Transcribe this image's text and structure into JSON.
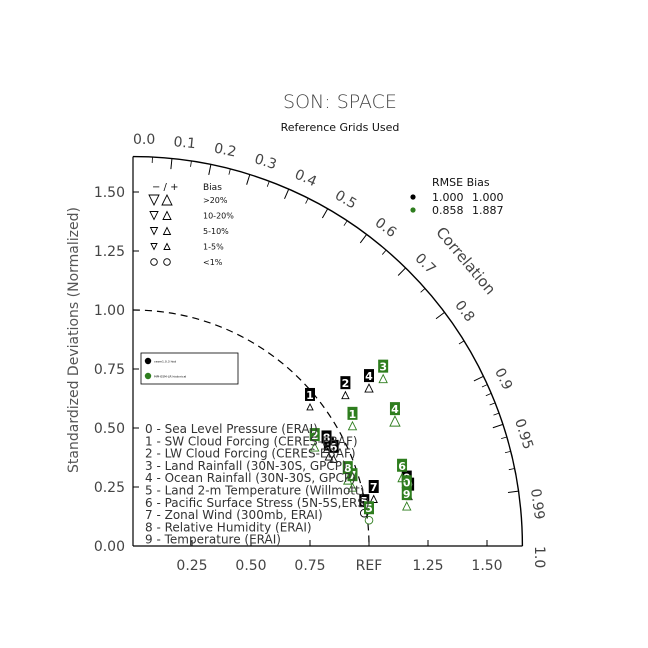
{
  "chart_data": {
    "type": "taylor-diagram",
    "title": "SON: SPACE",
    "subtitle": "Reference Grids Used",
    "ylabel": "Standardized Deviations (Normalized)",
    "correlation_label": "Correlation",
    "std_ticks": [
      "0.00",
      "0.25",
      "0.50",
      "0.75",
      "1.00",
      "1.25",
      "1.50"
    ],
    "x_tick_labels": [
      "0.25",
      "0.50",
      "0.75",
      "REF",
      "1.25",
      "1.50"
    ],
    "corr_ticks": [
      "0.0",
      "0.1",
      "0.2",
      "0.3",
      "0.4",
      "0.5",
      "0.6",
      "0.7",
      "0.8",
      "0.9",
      "0.95",
      "0.99",
      "1.0"
    ],
    "std_max": 1.65,
    "ref_std": 1.0,
    "bias_legend": {
      "header_sign": "− / +",
      "header_label": "Bias",
      "rows": [
        ">20%",
        "10-20%",
        "5-10%",
        "1-5%",
        "<1%"
      ]
    },
    "rmse_legend": {
      "header": "RMSE  Bias",
      "rows": [
        {
          "color": "#000000",
          "rmse": "1.000",
          "bias": "1.000"
        },
        {
          "color": "#2e7d1e",
          "rmse": "0.858",
          "bias": "1.887"
        }
      ]
    },
    "model_legend": {
      "entries": [
        {
          "color": "#000000",
          "label": "cesm1.0.3 hist"
        },
        {
          "color": "#2e7d1e",
          "label": "MPI-ESM-LR historical"
        }
      ]
    },
    "variables": [
      "0 - Sea Level Pressure (ERAI)",
      "1 - SW Cloud Forcing (CERES-EBAF)",
      "2 - LW Cloud Forcing (CERES-EBAF)",
      "3 - Land Rainfall (30N-30S, GPCP)",
      "4 - Ocean Rainfall (30N-30S, GPCP)",
      "5 - Land 2-m Temperature (Willmott)",
      "6 - Pacific Surface Stress (5N-5S,ERS)",
      "7 - Zonal Wind (300mb, ERAI)",
      "8 - Relative Humidity (ERAI)",
      "9 - Temperature (ERAI)"
    ],
    "series": [
      {
        "name": "cesm1.0.3 hist",
        "color": "#000000",
        "points": [
          {
            "id": "0",
            "x": 1.16,
            "y": 0.29,
            "bias_dir": "down",
            "bias_class": 1
          },
          {
            "id": "1",
            "x": 0.75,
            "y": 0.64,
            "bias_dir": "up",
            "bias_class": 1
          },
          {
            "id": "2",
            "x": 0.9,
            "y": 0.69,
            "bias_dir": "up",
            "bias_class": 2
          },
          {
            "id": "3",
            "x": 0.83,
            "y": 0.43,
            "bias_dir": "up",
            "bias_class": 2
          },
          {
            "id": "4",
            "x": 1.0,
            "y": 0.72,
            "bias_dir": "up",
            "bias_class": 3
          },
          {
            "id": "5",
            "x": 0.98,
            "y": 0.19,
            "bias_dir": "none",
            "bias_class": 0
          },
          {
            "id": "6",
            "x": 0.85,
            "y": 0.42,
            "bias_dir": "up",
            "bias_class": 2
          },
          {
            "id": "7",
            "x": 1.02,
            "y": 0.25,
            "bias_dir": "up",
            "bias_class": 2
          },
          {
            "id": "8",
            "x": 0.82,
            "y": 0.46,
            "bias_dir": "up",
            "bias_class": 1
          },
          {
            "id": "9",
            "x": 1.17,
            "y": 0.26,
            "bias_dir": "up",
            "bias_class": 1
          }
        ]
      },
      {
        "name": "MPI-ESM-LR historical",
        "color": "#2e7d1e",
        "points": [
          {
            "id": "0",
            "x": 1.16,
            "y": 0.27,
            "bias_dir": "up",
            "bias_class": 3
          },
          {
            "id": "1",
            "x": 0.93,
            "y": 0.56,
            "bias_dir": "up",
            "bias_class": 3
          },
          {
            "id": "2",
            "x": 0.77,
            "y": 0.47,
            "bias_dir": "up",
            "bias_class": 3
          },
          {
            "id": "3",
            "x": 1.06,
            "y": 0.76,
            "bias_dir": "up",
            "bias_class": 3
          },
          {
            "id": "4",
            "x": 1.11,
            "y": 0.58,
            "bias_dir": "up",
            "bias_class": 4
          },
          {
            "id": "5",
            "x": 1.0,
            "y": 0.16,
            "bias_dir": "none",
            "bias_class": 0
          },
          {
            "id": "6",
            "x": 1.14,
            "y": 0.34,
            "bias_dir": "up",
            "bias_class": 3
          },
          {
            "id": "7",
            "x": 0.93,
            "y": 0.3,
            "bias_dir": "up",
            "bias_class": 3
          },
          {
            "id": "8",
            "x": 0.91,
            "y": 0.33,
            "bias_dir": "up",
            "bias_class": 3
          },
          {
            "id": "9",
            "x": 1.16,
            "y": 0.22,
            "bias_dir": "up",
            "bias_class": 3
          }
        ]
      }
    ]
  }
}
